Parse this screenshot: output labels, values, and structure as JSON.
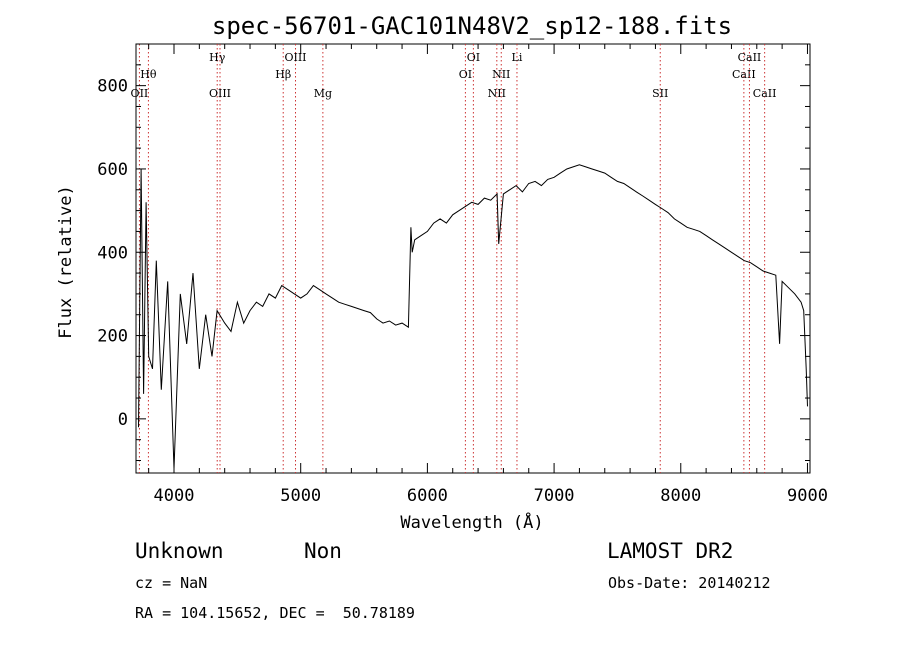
{
  "footer": {
    "class_label": "Unknown",
    "subclass_label": "Non",
    "survey": "LAMOST DR2",
    "cz": "cz = NaN",
    "obs_date": "Obs-Date: 20140212",
    "radec": "RA = 104.15652, DEC =  50.78189"
  },
  "chart_data": {
    "type": "line",
    "title": "spec-56701-GAC101N48V2_sp12-188.fits",
    "xlabel": "Wavelength (Å)",
    "ylabel": "Flux (relative)",
    "xlim": [
      3700,
      9020
    ],
    "ylim": [
      -130,
      900
    ],
    "x_ticks": [
      4000,
      5000,
      6000,
      7000,
      8000,
      9000
    ],
    "y_ticks": [
      0,
      200,
      400,
      600,
      800
    ],
    "line_color": "#000000",
    "marker_color": "#cc3333",
    "series": [
      {
        "x": [
          3720,
          3740,
          3760,
          3780,
          3800,
          3830,
          3860,
          3900,
          3950,
          4000,
          4050,
          4100,
          4150,
          4200,
          4250,
          4300,
          4340,
          4400,
          4450,
          4500,
          4550,
          4600,
          4650,
          4700,
          4750,
          4800,
          4850,
          4900,
          4950,
          5000,
          5050,
          5100,
          5150,
          5200,
          5250,
          5300,
          5350,
          5400,
          5450,
          5500,
          5550,
          5600,
          5650,
          5700,
          5750,
          5800,
          5850,
          5870,
          5880,
          5900,
          5950,
          6000,
          6050,
          6100,
          6150,
          6200,
          6250,
          6300,
          6350,
          6400,
          6450,
          6500,
          6550,
          6563,
          6600,
          6650,
          6700,
          6750,
          6800,
          6850,
          6900,
          6950,
          7000,
          7050,
          7100,
          7150,
          7200,
          7250,
          7300,
          7350,
          7400,
          7450,
          7500,
          7550,
          7600,
          7650,
          7700,
          7750,
          7800,
          7850,
          7900,
          7950,
          8000,
          8050,
          8100,
          8150,
          8200,
          8250,
          8300,
          8350,
          8400,
          8450,
          8500,
          8550,
          8600,
          8650,
          8700,
          8750,
          8780,
          8800,
          8850,
          8900,
          8950,
          8970,
          8990,
          9000
        ],
        "y": [
          -20,
          600,
          60,
          520,
          150,
          120,
          380,
          70,
          330,
          -120,
          300,
          180,
          350,
          120,
          250,
          150,
          260,
          230,
          210,
          280,
          230,
          260,
          280,
          270,
          300,
          290,
          320,
          310,
          300,
          290,
          300,
          320,
          310,
          300,
          290,
          280,
          275,
          270,
          265,
          260,
          255,
          240,
          230,
          235,
          225,
          230,
          220,
          460,
          400,
          430,
          440,
          450,
          470,
          480,
          470,
          490,
          500,
          510,
          520,
          515,
          530,
          525,
          540,
          420,
          540,
          550,
          560,
          545,
          565,
          570,
          560,
          575,
          580,
          590,
          600,
          605,
          610,
          605,
          600,
          595,
          590,
          580,
          570,
          565,
          555,
          545,
          535,
          525,
          515,
          505,
          495,
          480,
          470,
          460,
          455,
          450,
          440,
          430,
          420,
          410,
          400,
          390,
          380,
          375,
          365,
          355,
          350,
          345,
          180,
          330,
          315,
          300,
          280,
          260,
          120,
          30
        ]
      }
    ],
    "spectral_lines": [
      {
        "name": "Hθ",
        "x": 3798,
        "row": 2
      },
      {
        "name": "OII",
        "x": 3727,
        "row": 3
      },
      {
        "name": "Hγ",
        "x": 4341,
        "row": 1
      },
      {
        "name": "OIII",
        "x": 4363,
        "row": 3
      },
      {
        "name": "Hβ",
        "x": 4862,
        "row": 2
      },
      {
        "name": "OIII",
        "x": 4959,
        "row": 1
      },
      {
        "name": "Mg",
        "x": 5175,
        "row": 3
      },
      {
        "name": "OI",
        "x": 6300,
        "row": 2
      },
      {
        "name": "OI",
        "x": 6363,
        "row": 1
      },
      {
        "name": "NII",
        "x": 6548,
        "row": 3
      },
      {
        "name": "NII",
        "x": 6583,
        "row": 2
      },
      {
        "name": "Li",
        "x": 6707,
        "row": 1
      },
      {
        "name": "SII",
        "x": 7838,
        "row": 3
      },
      {
        "name": "CaII",
        "x": 8498,
        "row": 2
      },
      {
        "name": "CaII",
        "x": 8542,
        "row": 1
      },
      {
        "name": "CaII",
        "x": 8662,
        "row": 3
      }
    ]
  }
}
